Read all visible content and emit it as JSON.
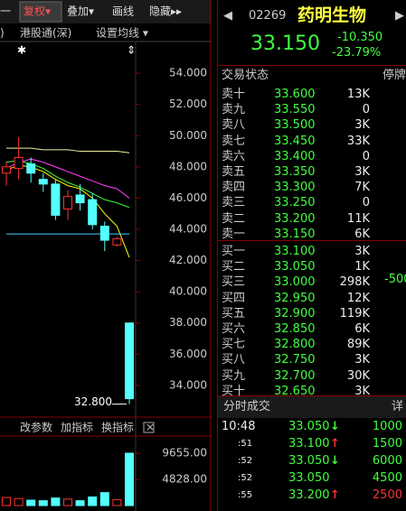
{
  "toolbar": {
    "items": [
      "一",
      "复权▾",
      "叠加▾",
      "画线",
      "隐藏▸▸"
    ]
  },
  "chart_header": {
    "left": ")",
    "market": "港股通(深)",
    "ma_setting": "设置均线 ▾"
  },
  "indicator_bar": {
    "items": [
      "改参数",
      "加指标",
      "换指标"
    ]
  },
  "chart_data": [
    {
      "type": "candlestick",
      "ylim": [
        32.2,
        55.8
      ],
      "yticks": [
        {
          "value": 54,
          "label": "54.000"
        },
        {
          "value": 52,
          "label": "52.000"
        },
        {
          "value": 50,
          "label": "50.000"
        },
        {
          "value": 48,
          "label": "48.000"
        },
        {
          "value": 46,
          "label": "46.000"
        },
        {
          "value": 44,
          "label": "44.000"
        },
        {
          "value": 42,
          "label": "42.000"
        },
        {
          "value": 40,
          "label": "40.000"
        },
        {
          "value": 38,
          "label": "38.000"
        },
        {
          "value": 36,
          "label": "36.000"
        },
        {
          "value": 34,
          "label": "34.000"
        }
      ],
      "open": [
        47.6,
        47.9,
        48.2,
        47.2,
        46.9,
        45.3,
        46.2,
        45.9,
        44.2,
        43.0,
        38.0
      ],
      "high": [
        48.3,
        49.9,
        48.6,
        47.6,
        47.2,
        46.5,
        46.9,
        46.3,
        44.5,
        43.5,
        38.0
      ],
      "low": [
        46.8,
        47.2,
        47.0,
        46.4,
        44.6,
        44.6,
        45.2,
        44.0,
        42.6,
        42.9,
        32.8
      ],
      "close": [
        48.0,
        48.6,
        47.6,
        46.9,
        44.9,
        46.1,
        45.7,
        44.3,
        43.3,
        43.4,
        33.15
      ],
      "up_color": "#ff3232",
      "down_color": "#54ffff",
      "lines": [
        {
          "color": "#f0f0a0",
          "values": [
            49.2,
            49.2,
            49.2,
            49.1,
            49.1,
            49.1,
            49.0,
            49.0,
            49.0,
            49.0,
            48.9
          ]
        },
        {
          "color": "#ff40ff",
          "values": [
            47.9,
            48.3,
            48.5,
            48.3,
            48.0,
            47.7,
            47.4,
            47.1,
            46.8,
            46.6,
            46.0
          ]
        },
        {
          "color": "#ffff00",
          "values": [
            47.8,
            48.1,
            48.0,
            47.7,
            47.2,
            46.8,
            46.6,
            46.0,
            45.0,
            44.2,
            42.2
          ]
        },
        {
          "color": "#40ff40",
          "values": [
            48.3,
            48.4,
            48.2,
            47.9,
            47.4,
            47.0,
            46.7,
            46.3,
            45.9,
            45.7,
            45.4
          ]
        },
        {
          "color": "#40d0ff",
          "values": [
            43.7,
            43.7,
            43.7,
            43.7,
            43.7,
            43.7,
            43.7,
            43.7,
            43.7,
            43.7,
            43.7
          ]
        }
      ],
      "annotation": "32.800"
    },
    {
      "type": "bar",
      "ylim": [
        0,
        12870
      ],
      "yticks": [
        {
          "value": 9655,
          "label": "9655.00"
        },
        {
          "value": 4828,
          "label": "4828.00"
        }
      ],
      "values": [
        1500,
        1300,
        1000,
        900,
        1400,
        1200,
        900,
        1600,
        2400,
        1100,
        9700
      ]
    }
  ],
  "quote": {
    "code": "02269",
    "name": "药明生物",
    "price": "33.150",
    "change": "-10.350",
    "pct": "-23.79%"
  },
  "book": {
    "status_label": "交易状态",
    "status": "停牌",
    "side_note": "-500",
    "asks": [
      [
        "卖十",
        "33.600",
        "13K"
      ],
      [
        "卖九",
        "33.550",
        "0"
      ],
      [
        "卖八",
        "33.500",
        "3K"
      ],
      [
        "卖七",
        "33.450",
        "33K"
      ],
      [
        "卖六",
        "33.400",
        "0"
      ],
      [
        "卖五",
        "33.350",
        "3K"
      ],
      [
        "卖四",
        "33.300",
        "7K"
      ],
      [
        "卖三",
        "33.250",
        "0"
      ],
      [
        "卖二",
        "33.200",
        "11K"
      ],
      [
        "卖一",
        "33.150",
        "6K"
      ]
    ],
    "bids": [
      [
        "买一",
        "33.100",
        "3K"
      ],
      [
        "买二",
        "33.050",
        "1K"
      ],
      [
        "买三",
        "33.000",
        "298K"
      ],
      [
        "买四",
        "32.950",
        "12K"
      ],
      [
        "买五",
        "32.900",
        "119K"
      ],
      [
        "买六",
        "32.850",
        "6K"
      ],
      [
        "买七",
        "32.800",
        "89K"
      ],
      [
        "买八",
        "32.750",
        "3K"
      ],
      [
        "买九",
        "32.700",
        "30K"
      ],
      [
        "买十",
        "32.650",
        "3K"
      ]
    ]
  },
  "trades": {
    "title": "分时成交",
    "detail": "详",
    "rows": [
      [
        "10:48",
        "33.050",
        "↓",
        "1000"
      ],
      [
        ":51",
        "33.100",
        "↑",
        "1500"
      ],
      [
        ":52",
        "33.050",
        "↓",
        "6000"
      ],
      [
        ":52",
        "33.050",
        "",
        "4500"
      ],
      [
        ":55",
        "33.200",
        "↑",
        "2500"
      ]
    ]
  }
}
